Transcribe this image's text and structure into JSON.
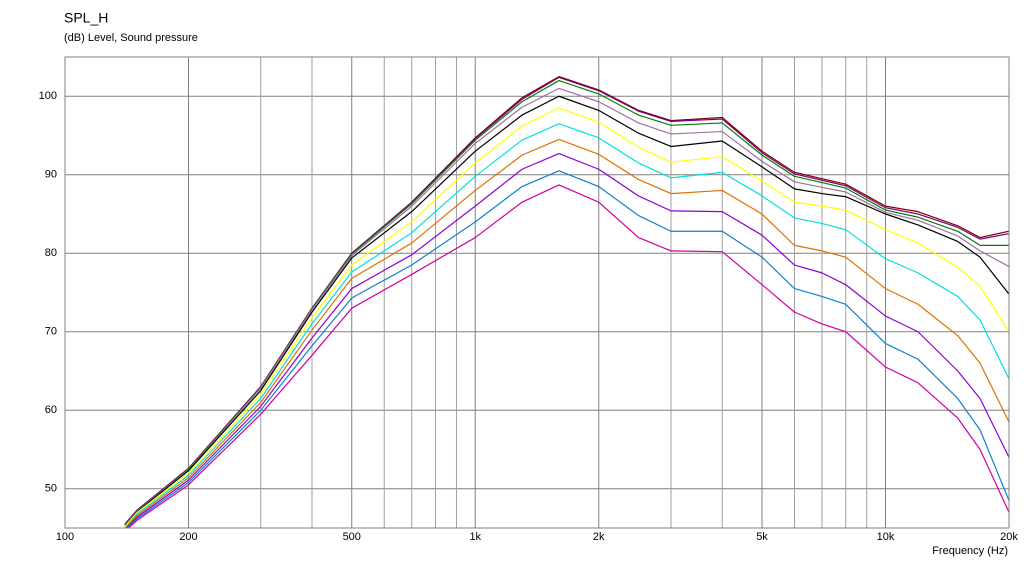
{
  "chart_data": {
    "type": "line",
    "title": "SPL_H",
    "subtitle": "(dB)  Level, Sound pressure",
    "x_label": "Frequency  (Hz)",
    "xscale": "log",
    "xlim": [
      100,
      20000
    ],
    "ylim": [
      45,
      105
    ],
    "xticks": [
      100,
      200,
      500,
      {
        "value": 1000,
        "label": "1k"
      },
      {
        "value": 2000,
        "label": "2k"
      },
      {
        "value": 5000,
        "label": "5k"
      },
      {
        "value": 10000,
        "label": "10k"
      },
      {
        "value": 20000,
        "label": "20k"
      }
    ],
    "x_minor_grid": [
      300,
      400,
      600,
      700,
      800,
      900,
      3000,
      4000,
      6000,
      7000,
      8000,
      9000
    ],
    "yticks": [
      50,
      60,
      70,
      80,
      90,
      100
    ],
    "grid": true,
    "x": [
      140,
      150,
      200,
      300,
      400,
      500,
      700,
      1000,
      1300,
      1600,
      2000,
      2500,
      3000,
      4000,
      5000,
      6000,
      7000,
      8000,
      10000,
      12000,
      15000,
      17000,
      20000
    ],
    "series": [
      {
        "color": "#800000",
        "values": [
          45.5,
          47.3,
          52.6,
          63,
          73,
          80,
          86.5,
          94.7,
          99.8,
          102.5,
          100.8,
          98.2,
          96.9,
          97.3,
          93,
          90.3,
          89.5,
          88.8,
          86,
          85.3,
          83.5,
          82,
          82.8
        ]
      },
      {
        "color": "#800080",
        "values": [
          45.5,
          47.3,
          52.6,
          63,
          73,
          80,
          86.5,
          94.6,
          99.6,
          102.4,
          100.7,
          98.1,
          96.8,
          97.1,
          92.8,
          90.1,
          89.3,
          88.6,
          85.8,
          85,
          83.3,
          81.8,
          82.5
        ]
      },
      {
        "color": "#008000",
        "values": [
          45.4,
          47.2,
          52.5,
          62.9,
          72.9,
          79.9,
          86.3,
          94.4,
          99.3,
          102,
          100.3,
          97.6,
          96.3,
          96.6,
          92.5,
          89.8,
          89,
          88.3,
          85.5,
          84.6,
          82.8,
          81,
          81
        ]
      },
      {
        "color": "#a070a0",
        "values": [
          45.4,
          47.2,
          52.4,
          62.8,
          72.8,
          79.7,
          86,
          94,
          98.6,
          101,
          99.3,
          96.6,
          95.2,
          95.5,
          91.7,
          89.1,
          88.4,
          87.8,
          85.2,
          84.2,
          82.2,
          80.3,
          78.3
        ]
      },
      {
        "color": "#000000",
        "values": [
          45.3,
          47.1,
          52.3,
          62.5,
          72.5,
          79.4,
          85.3,
          93,
          97.6,
          100,
          98.2,
          95.3,
          93.6,
          94.3,
          91,
          88.2,
          87.6,
          87.2,
          85,
          83.6,
          81.5,
          79.5,
          74.8
        ]
      },
      {
        "color": "#ffff00",
        "values": [
          45.2,
          47,
          52,
          62,
          71.8,
          78.5,
          84,
          91.5,
          96.2,
          98.5,
          96.7,
          93.5,
          91.6,
          92.3,
          89.2,
          86.5,
          86,
          85.5,
          83,
          81.3,
          78.2,
          75.8,
          70
        ]
      },
      {
        "color": "#00e0e0",
        "values": [
          45,
          46.8,
          51.7,
          61.5,
          71,
          77.6,
          82.6,
          89.8,
          94.4,
          96.5,
          94.7,
          91.5,
          89.6,
          90.3,
          87.3,
          84.5,
          83.8,
          83,
          79.3,
          77.5,
          74.5,
          71.5,
          64
        ]
      },
      {
        "color": "#e07000",
        "values": [
          44.9,
          46.6,
          51.4,
          61,
          70.2,
          76.8,
          81.3,
          88,
          92.5,
          94.5,
          92.6,
          89.4,
          87.6,
          88,
          85,
          81,
          80.3,
          79.5,
          75.5,
          73.5,
          69.5,
          66,
          58.5
        ]
      },
      {
        "color": "#9000d0",
        "values": [
          44.8,
          46.4,
          51.1,
          60.5,
          69.2,
          75.5,
          79.8,
          86,
          90.7,
          92.7,
          90.7,
          87.3,
          85.4,
          85.3,
          82.3,
          78.5,
          77.5,
          76,
          72,
          70,
          65,
          61.5,
          54
        ]
      },
      {
        "color": "#1080d0",
        "values": [
          44.7,
          46.2,
          50.8,
          60,
          68.2,
          74.3,
          78.5,
          84,
          88.5,
          90.5,
          88.5,
          84.8,
          82.8,
          82.8,
          79.5,
          75.5,
          74.5,
          73.5,
          68.5,
          66.5,
          61.5,
          57.5,
          48.5
        ]
      },
      {
        "color": "#d000a0",
        "values": [
          44.6,
          46,
          50.5,
          59.5,
          67,
          73,
          77.3,
          82,
          86.5,
          88.7,
          86.5,
          82,
          80.3,
          80.2,
          76,
          72.5,
          71,
          70,
          65.5,
          63.5,
          59,
          55,
          47
        ]
      }
    ]
  }
}
